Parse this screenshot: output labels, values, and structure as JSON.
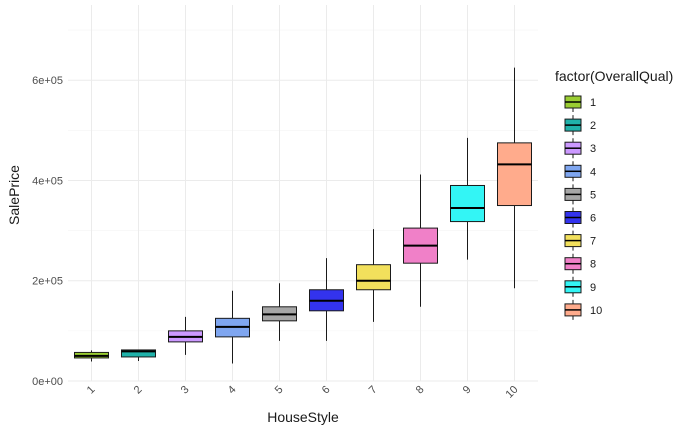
{
  "chart_data": {
    "type": "boxplot",
    "xlabel": "HouseStyle",
    "ylabel": "SalePrice",
    "legend_title": "factor(OverallQual)",
    "legend_position": "right",
    "grid": true,
    "ylim": [
      0,
      750000
    ],
    "yticks": [
      {
        "value": 0,
        "label": "0e+00"
      },
      {
        "value": 200000,
        "label": "2e+05"
      },
      {
        "value": 400000,
        "label": "4e+05"
      },
      {
        "value": 600000,
        "label": "6e+05"
      }
    ],
    "boxes": [
      {
        "category": "1",
        "min": 39000,
        "q1": 46000,
        "median": 50000,
        "q3": 57000,
        "max": 61000,
        "color": "#9acd32"
      },
      {
        "category": "2",
        "min": 40000,
        "q1": 48000,
        "median": 59000,
        "q3": 62000,
        "max": 62000,
        "color": "#20b2aa"
      },
      {
        "category": "3",
        "min": 52000,
        "q1": 78000,
        "median": 88000,
        "q3": 100000,
        "max": 128000,
        "color": "#cc99ff"
      },
      {
        "category": "4",
        "min": 35000,
        "q1": 88000,
        "median": 108000,
        "q3": 125000,
        "max": 180000,
        "color": "#7fa6f0"
      },
      {
        "category": "5",
        "min": 80000,
        "q1": 120000,
        "median": 133000,
        "q3": 148000,
        "max": 195000,
        "color": "#a6a6a6"
      },
      {
        "category": "6",
        "min": 80000,
        "q1": 140000,
        "median": 160000,
        "q3": 182000,
        "max": 245000,
        "color": "#3333ee"
      },
      {
        "category": "7",
        "min": 118000,
        "q1": 182000,
        "median": 200000,
        "q3": 232000,
        "max": 303000,
        "color": "#f2e05c"
      },
      {
        "category": "8",
        "min": 148000,
        "q1": 235000,
        "median": 270000,
        "q3": 305000,
        "max": 412000,
        "color": "#f080c8"
      },
      {
        "category": "9",
        "min": 242000,
        "q1": 318000,
        "median": 345000,
        "q3": 390000,
        "max": 485000,
        "color": "#33f5f5"
      },
      {
        "category": "10",
        "min": 185000,
        "q1": 350000,
        "median": 432000,
        "q3": 475000,
        "max": 625000,
        "color": "#ffab8c"
      }
    ]
  }
}
